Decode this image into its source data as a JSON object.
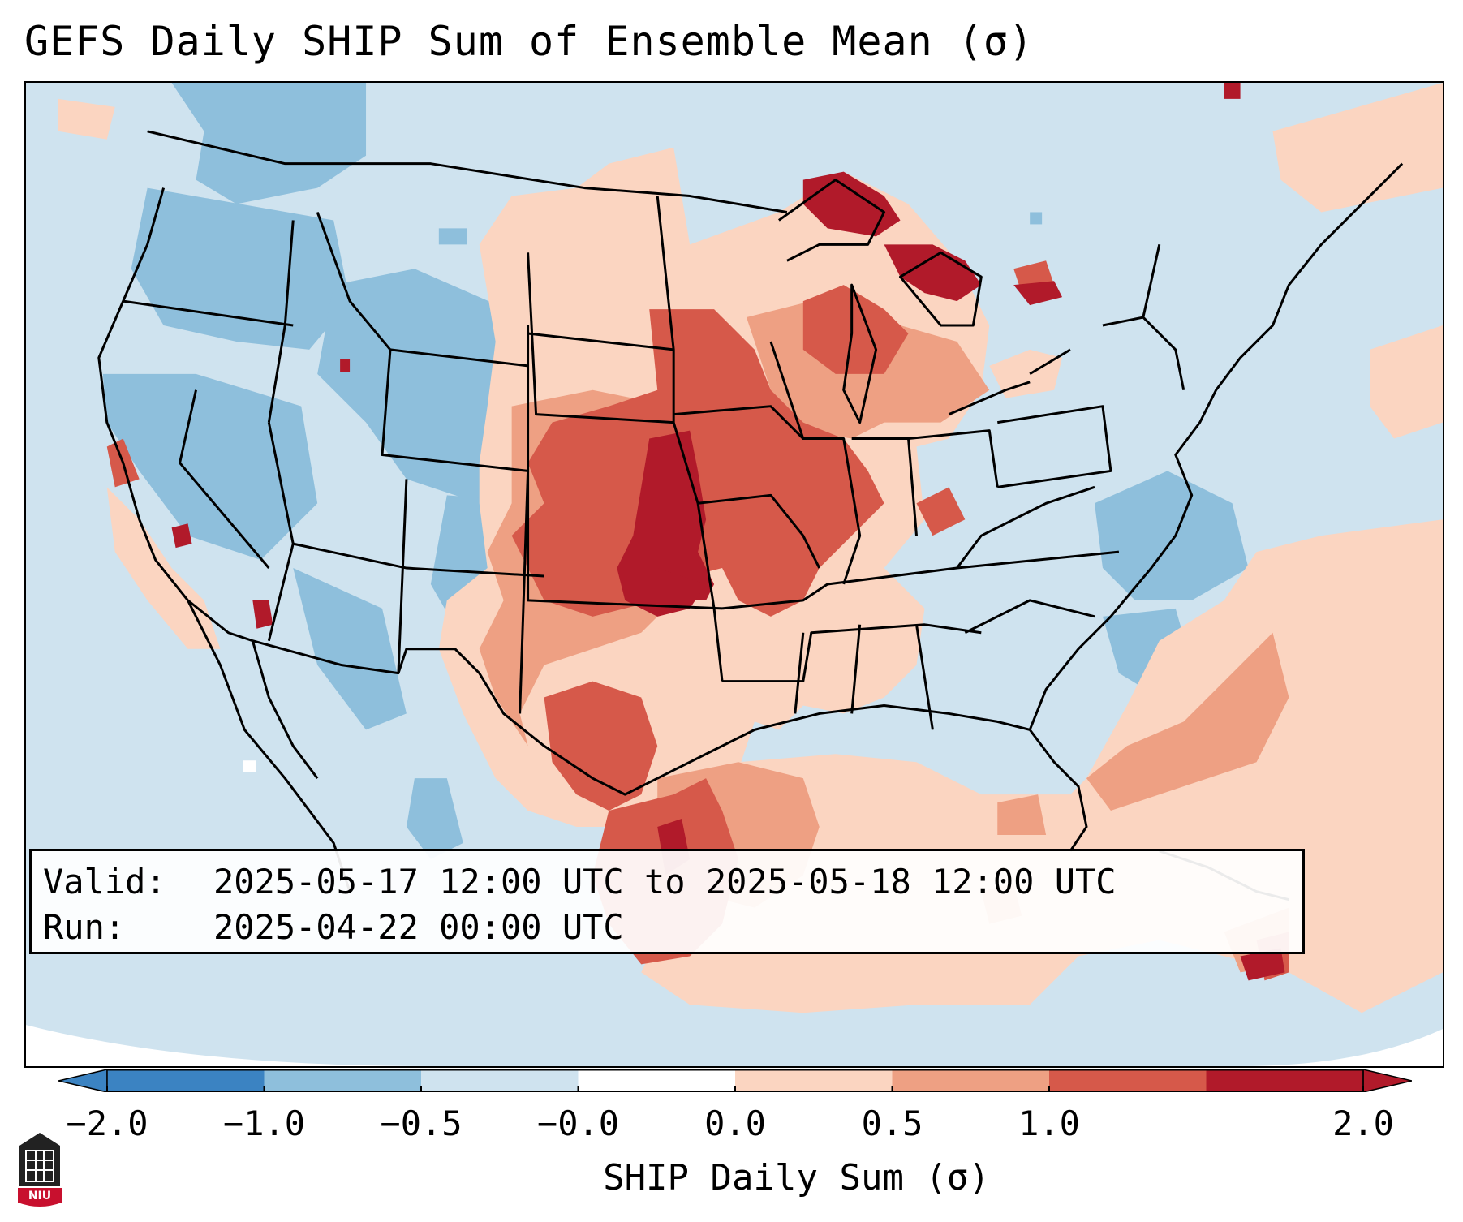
{
  "title": "GEFS Daily SHIP Sum of Ensemble Mean (σ)",
  "info": {
    "valid_label": "Valid:",
    "valid_value": "2025-05-17 12:00 UTC to 2025-05-18 12:00 UTC",
    "run_label": "Run:",
    "run_value": "2025-04-22 00:00 UTC"
  },
  "colorbar": {
    "label": "SHIP Daily Sum (σ)",
    "ticks": [
      "−2.0",
      "−1.0",
      "−0.5",
      "−0.0",
      "0.0",
      "0.5",
      "1.0",
      "2.0"
    ],
    "colors": [
      "#3b83c2",
      "#8ebfdc",
      "#cfe3ef",
      "#ffffff",
      "#fbd5c1",
      "#eea083",
      "#d6594a",
      "#b11a2a"
    ],
    "extend": "both"
  },
  "map": {
    "region": "Contiguous United States",
    "colors": {
      "background_neutral": "#cfe3ef",
      "light_red": "#fbd5c1",
      "medium_red": "#eea083",
      "strong_red": "#d6594a",
      "dark_red": "#b11a2a",
      "light_blue": "#8ebfdc",
      "medium_blue": "#3b83c2"
    }
  },
  "logo": {
    "text": "NIU",
    "icon": "niu-seal-icon"
  }
}
